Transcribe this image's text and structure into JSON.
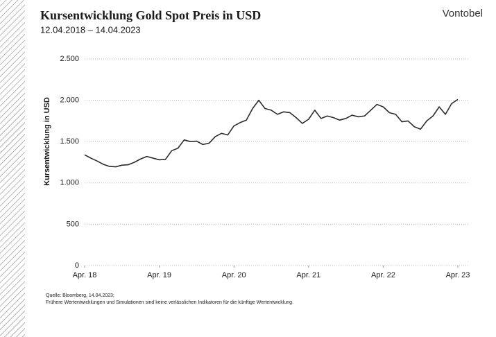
{
  "chart_data": {
    "type": "line",
    "title": "Kursentwicklung Gold Spot Preis in USD",
    "subtitle": "12.04.2018 – 14.04.2023",
    "brand": "Vontobel",
    "ylabel": "Kursentwicklung in USD",
    "source": "Quelle: Bloomberg, 14.04.2023;",
    "disclaimer": "Frühere Wertentwicklungen und Simulationen sind keine verlässlichen Indikatoren für die künftige Wertentwicklung.",
    "x": [
      "2018-04",
      "2018-05",
      "2018-06",
      "2018-07",
      "2018-08",
      "2018-09",
      "2018-10",
      "2018-11",
      "2018-12",
      "2019-01",
      "2019-02",
      "2019-03",
      "2019-04",
      "2019-05",
      "2019-06",
      "2019-07",
      "2019-08",
      "2019-09",
      "2019-10",
      "2019-11",
      "2019-12",
      "2020-01",
      "2020-02",
      "2020-03",
      "2020-04",
      "2020-05",
      "2020-06",
      "2020-07",
      "2020-08",
      "2020-09",
      "2020-10",
      "2020-11",
      "2020-12",
      "2021-01",
      "2021-02",
      "2021-03",
      "2021-04",
      "2021-05",
      "2021-06",
      "2021-07",
      "2021-08",
      "2021-09",
      "2021-10",
      "2021-11",
      "2021-12",
      "2022-01",
      "2022-02",
      "2022-03",
      "2022-04",
      "2022-05",
      "2022-06",
      "2022-07",
      "2022-08",
      "2022-09",
      "2022-10",
      "2022-11",
      "2022-12",
      "2023-01",
      "2023-02",
      "2023-03",
      "2023-04"
    ],
    "series": [
      {
        "name": "Gold Spot",
        "color": "#2b2b2b",
        "values": [
          1340,
          1300,
          1265,
          1225,
          1200,
          1195,
          1215,
          1220,
          1250,
          1290,
          1320,
          1300,
          1280,
          1285,
          1390,
          1420,
          1520,
          1500,
          1505,
          1465,
          1480,
          1560,
          1600,
          1580,
          1690,
          1730,
          1760,
          1900,
          2000,
          1900,
          1880,
          1830,
          1860,
          1850,
          1790,
          1720,
          1770,
          1880,
          1780,
          1810,
          1790,
          1760,
          1780,
          1820,
          1800,
          1810,
          1880,
          1950,
          1920,
          1850,
          1830,
          1740,
          1750,
          1680,
          1650,
          1750,
          1810,
          1920,
          1830,
          1960,
          2010
        ]
      }
    ],
    "xticks": [
      {
        "value": "2018-04",
        "label": "Apr. 18"
      },
      {
        "value": "2019-04",
        "label": "Apr. 19"
      },
      {
        "value": "2020-04",
        "label": "Apr. 20"
      },
      {
        "value": "2021-04",
        "label": "Apr. 21"
      },
      {
        "value": "2022-04",
        "label": "Apr. 22"
      },
      {
        "value": "2023-04",
        "label": "Apr. 23"
      }
    ],
    "ylim": [
      0,
      2500
    ],
    "yticks": [
      0,
      500,
      {
        "value": 1000,
        "label": "1.000"
      },
      {
        "value": 1500,
        "label": "1.500"
      },
      {
        "value": 2000,
        "label": "2.000"
      },
      {
        "value": 2500,
        "label": "2.500"
      }
    ],
    "grid": true
  }
}
